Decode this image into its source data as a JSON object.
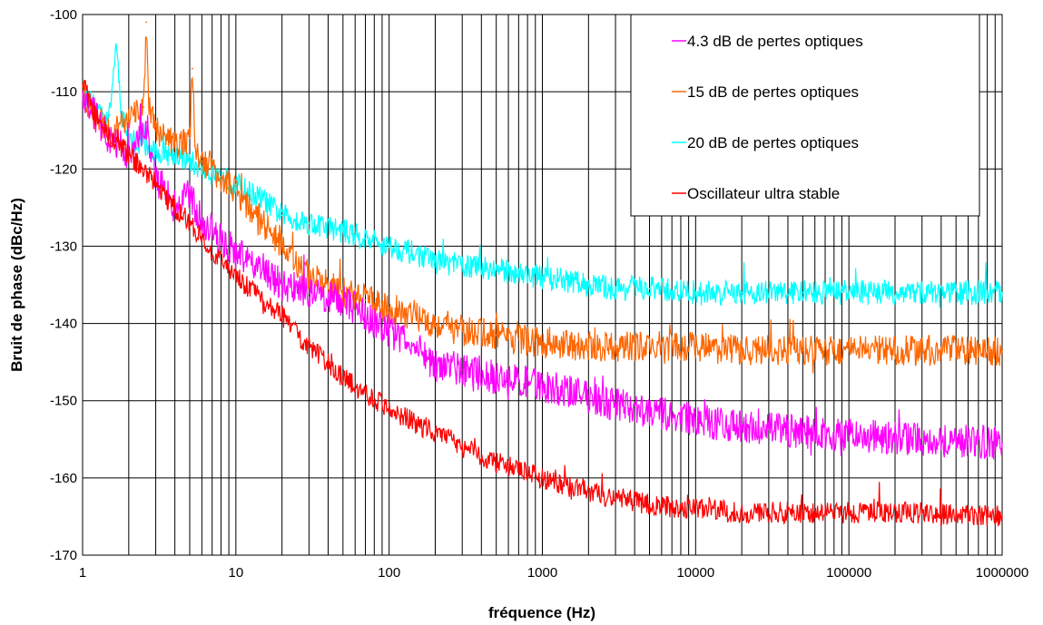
{
  "chart_data": {
    "type": "line",
    "title": "",
    "xlabel": "fréquence (Hz)",
    "ylabel": "Bruit de phase (dBc/Hz)",
    "xscale": "log",
    "xlim": [
      1,
      1000000
    ],
    "ylim": [
      -170,
      -100
    ],
    "x_ticks": [
      "1",
      "10",
      "100",
      "1000",
      "10000",
      "100000",
      "1000000"
    ],
    "y_ticks": [
      "-100",
      "-110",
      "-120",
      "-130",
      "-140",
      "-150",
      "-160",
      "-170"
    ],
    "grid": true,
    "legend_position": "top-right",
    "series": [
      {
        "name": "4.3 dB de pertes optiques",
        "color": "#ff00ff",
        "x": [
          1,
          1.2,
          1.5,
          2,
          2.6,
          3,
          4,
          5,
          6,
          8,
          10,
          15,
          20,
          30,
          50,
          70,
          100,
          150,
          200,
          300,
          500,
          700,
          1000,
          2000,
          3000,
          5000,
          10000,
          20000,
          50000,
          100000,
          300000,
          1000000
        ],
        "y": [
          -110,
          -113,
          -116,
          -118,
          -114,
          -121,
          -125,
          -123,
          -127,
          -129,
          -131,
          -133,
          -135,
          -136,
          -137,
          -139,
          -141,
          -143,
          -145,
          -146,
          -147,
          -147.5,
          -148,
          -149.5,
          -150.5,
          -151.5,
          -152.5,
          -153.5,
          -154,
          -154.5,
          -155,
          -155.5
        ]
      },
      {
        "name": "15 dB de pertes optiques",
        "color": "#ff6600",
        "x": [
          1,
          1.2,
          1.5,
          2,
          2.5,
          2.6,
          2.7,
          3,
          4,
          5,
          5.2,
          5.4,
          6,
          8,
          10,
          15,
          20,
          30,
          50,
          70,
          100,
          150,
          200,
          300,
          500,
          700,
          1000,
          2000,
          3000,
          5000,
          10000,
          20000,
          50000,
          100000,
          300000,
          1000000
        ],
        "y": [
          -110,
          -113,
          -115,
          -114,
          -112,
          -101,
          -112,
          -115,
          -117,
          -116,
          -107,
          -117,
          -119,
          -121,
          -123,
          -127,
          -130,
          -134,
          -136,
          -137,
          -138,
          -139,
          -140,
          -141,
          -141.5,
          -142,
          -142.5,
          -143,
          -143,
          -143,
          -143,
          -143.5,
          -143.5,
          -143.5,
          -143.5,
          -143.5
        ]
      },
      {
        "name": "20 dB de pertes optiques",
        "color": "#00ffff",
        "x": [
          1,
          1.2,
          1.5,
          1.65,
          1.8,
          2,
          3,
          4,
          5,
          6,
          8,
          10,
          15,
          20,
          30,
          50,
          70,
          100,
          150,
          200,
          300,
          500,
          700,
          1000,
          2000,
          3000,
          5000,
          10000,
          20000,
          50000,
          100000,
          300000,
          1000000
        ],
        "y": [
          -110,
          -112,
          -113,
          -104,
          -113,
          -116,
          -118,
          -118,
          -119,
          -120,
          -121,
          -122,
          -124,
          -126,
          -127,
          -128,
          -129,
          -130,
          -131,
          -132,
          -132.5,
          -133,
          -133.5,
          -134,
          -135,
          -135.5,
          -135.5,
          -136,
          -136,
          -136,
          -136,
          -136,
          -136
        ]
      },
      {
        "name": "Oscillateur ultra stable",
        "color": "#ff0000",
        "x": [
          1,
          1.2,
          1.5,
          2,
          3,
          4,
          5,
          6,
          8,
          10,
          15,
          20,
          30,
          50,
          70,
          100,
          150,
          200,
          300,
          500,
          700,
          1000,
          2000,
          3000,
          5000,
          10000,
          20000,
          50000,
          100000,
          300000,
          1000000
        ],
        "y": [
          -109,
          -113,
          -116,
          -118,
          -122,
          -125,
          -127,
          -129,
          -132,
          -134,
          -137,
          -139,
          -143,
          -147,
          -149,
          -151,
          -153,
          -154,
          -156,
          -158,
          -159,
          -160,
          -162,
          -162.5,
          -163.5,
          -164,
          -164.5,
          -164.5,
          -164.5,
          -164.5,
          -165
        ]
      }
    ]
  }
}
